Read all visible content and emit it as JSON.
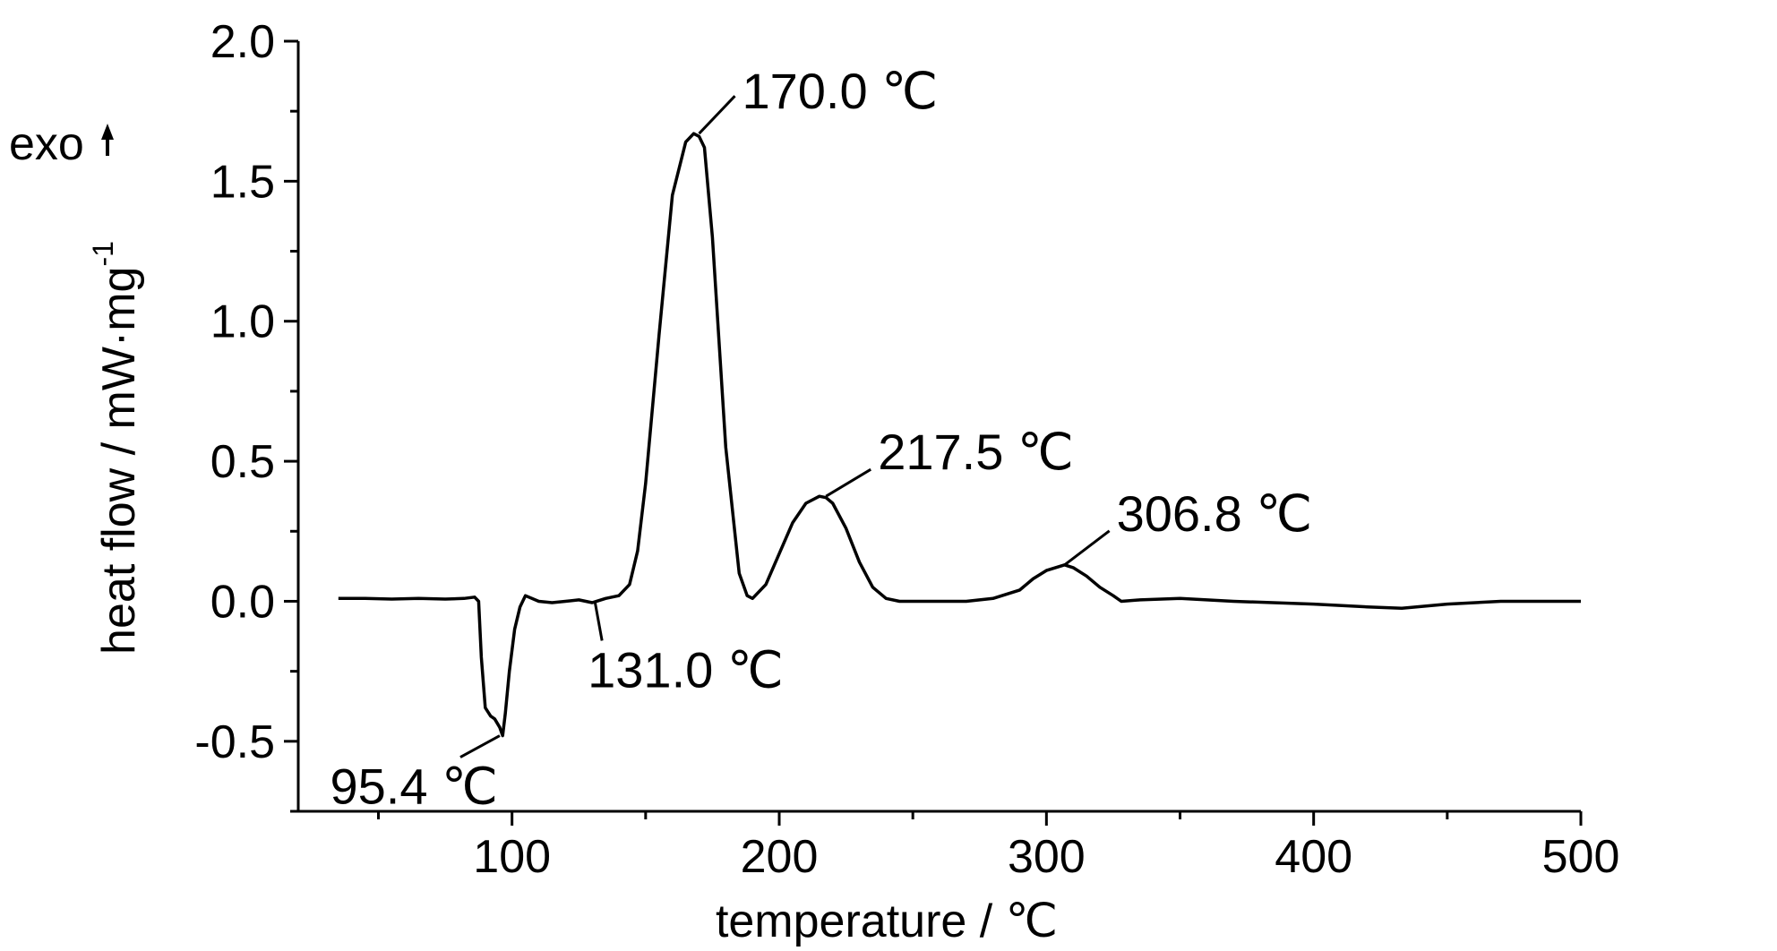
{
  "chart_data": {
    "type": "line",
    "title": "",
    "xlabel": "temperature /  ℃",
    "ylabel_main": "heat flow / mW·mg",
    "ylabel_sup": "-1",
    "exo_label": "exo",
    "xlim": [
      20,
      500
    ],
    "ylim": [
      -0.75,
      2.0
    ],
    "xticks_major": [
      100,
      200,
      300,
      400,
      500
    ],
    "xticks_minor": [
      50,
      150,
      250,
      350,
      450
    ],
    "yticks_major": [
      -0.5,
      0.0,
      0.5,
      1.0,
      1.5,
      2.0
    ],
    "yticks_minor": [
      -0.75,
      -0.25,
      0.25,
      0.75,
      1.25,
      1.75
    ],
    "xtick_labels": [
      "100",
      "200",
      "300",
      "400",
      "500"
    ],
    "ytick_labels": [
      "-0.5",
      "0.0",
      "0.5",
      "1.0",
      "1.5",
      "2.0"
    ],
    "grid": false,
    "series": [
      {
        "x": [
          35,
          45,
          55,
          65,
          75,
          82,
          86,
          87.5,
          88.5,
          90,
          92,
          93.5,
          95.4,
          96.5,
          97.5,
          99,
          101,
          103,
          105,
          110,
          115,
          120,
          125,
          130,
          131,
          135,
          140,
          144,
          147,
          150,
          155,
          160,
          165,
          168,
          170,
          172,
          175,
          180,
          185,
          188,
          190,
          195,
          200,
          205,
          210,
          215,
          217.5,
          220,
          225,
          230,
          235,
          240,
          245,
          250,
          260,
          270,
          280,
          290,
          295,
          300,
          306.8,
          310,
          315,
          320,
          325,
          328,
          335,
          350,
          370,
          400,
          420,
          433,
          450,
          470,
          500
        ],
        "y": [
          0.01,
          0.01,
          0.008,
          0.01,
          0.008,
          0.01,
          0.015,
          0.0,
          -0.2,
          -0.38,
          -0.41,
          -0.42,
          -0.45,
          -0.48,
          -0.4,
          -0.25,
          -0.1,
          -0.02,
          0.02,
          0.0,
          -0.005,
          0.0,
          0.005,
          -0.005,
          -0.002,
          0.01,
          0.02,
          0.06,
          0.18,
          0.42,
          0.95,
          1.45,
          1.64,
          1.67,
          1.66,
          1.62,
          1.3,
          0.55,
          0.1,
          0.02,
          0.01,
          0.06,
          0.17,
          0.28,
          0.35,
          0.375,
          0.37,
          0.35,
          0.26,
          0.14,
          0.05,
          0.01,
          0.0,
          0.0,
          0.0,
          0.0,
          0.01,
          0.04,
          0.08,
          0.11,
          0.13,
          0.12,
          0.09,
          0.05,
          0.02,
          0.0,
          0.005,
          0.01,
          0.0,
          -0.01,
          -0.02,
          -0.025,
          -0.01,
          0.0,
          0.0
        ]
      }
    ],
    "annotations": [
      {
        "label": "170.0  ℃",
        "x": 170.0,
        "y": 1.67
      },
      {
        "label": "217.5 ℃",
        "x": 217.5,
        "y": 0.375
      },
      {
        "label": "306.8  ℃",
        "x": 306.8,
        "y": 0.13
      },
      {
        "label": "131.0  ℃",
        "x": 131.0,
        "y": 0.0
      },
      {
        "label": "95.4  ℃",
        "x": 95.4,
        "y": -0.48
      }
    ]
  }
}
